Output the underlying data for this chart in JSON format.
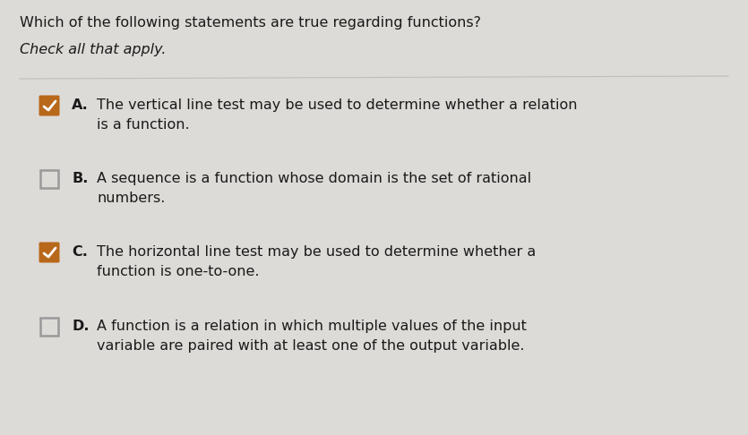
{
  "title": "Which of the following statements are true regarding functions?",
  "subtitle": "Check all that apply.",
  "background_color": "#dddbd8",
  "title_fontsize": 11.5,
  "subtitle_fontsize": 11.5,
  "options": [
    {
      "label": "A.",
      "text_lines": [
        "The vertical line test may be used to determine whether a relation",
        "is a function."
      ],
      "checked": true
    },
    {
      "label": "B.",
      "text_lines": [
        "A sequence is a function whose domain is the set of rational",
        "numbers."
      ],
      "checked": false
    },
    {
      "label": "C.",
      "text_lines": [
        "The horizontal line test may be used to determine whether a",
        "function is one-to-one."
      ],
      "checked": true
    },
    {
      "label": "D.",
      "text_lines": [
        "A function is a relation in which multiple values of the input",
        "variable are paired with at least one of the output variable."
      ],
      "checked": false
    }
  ],
  "check_color": "#b8681a",
  "unchecked_border_color": "#999999",
  "text_color": "#1a1a1a",
  "line_color": "#c0bebb",
  "option_fontsize": 11.5,
  "label_fontsize": 11.5,
  "figwidth": 8.35,
  "figheight": 4.86,
  "dpi": 100
}
